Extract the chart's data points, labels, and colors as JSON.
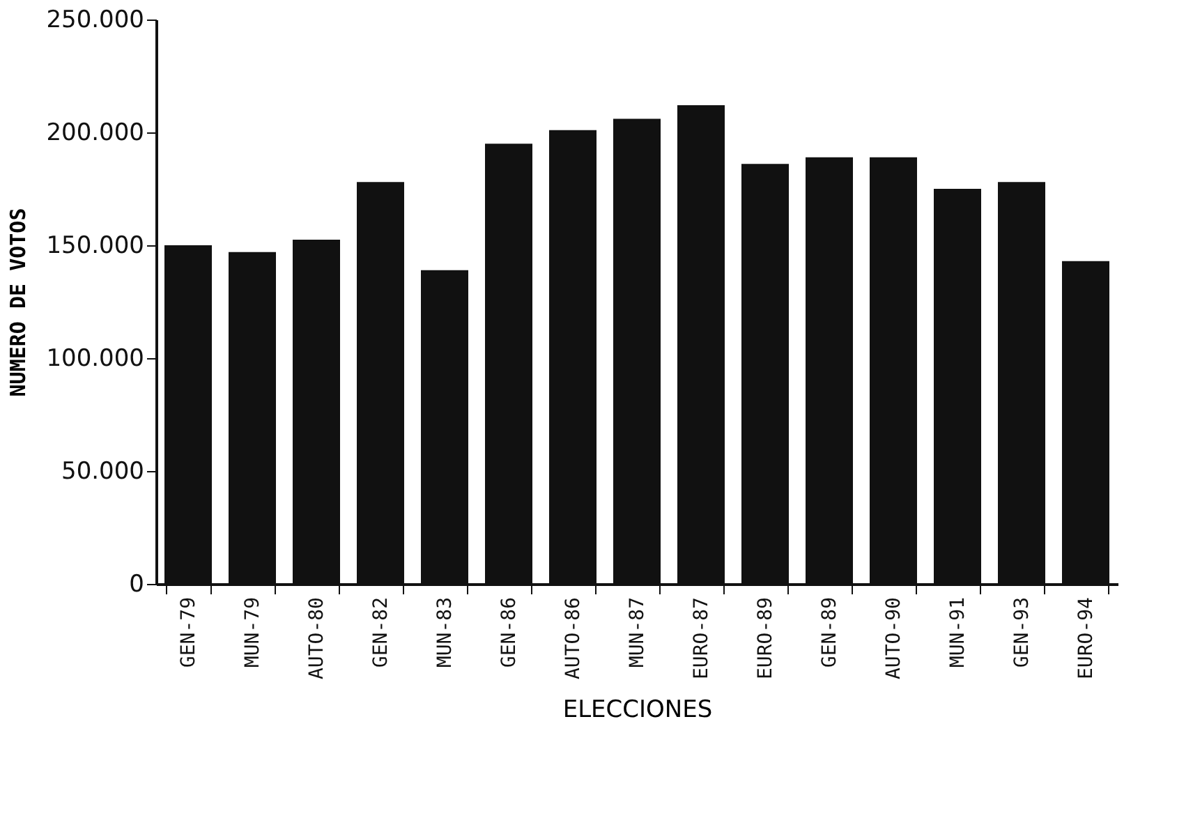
{
  "chart_data": {
    "type": "bar",
    "xlabel": "ELECCIONES",
    "ylabel": "NUMERO DE VOTOS",
    "categories": [
      "GEN-79",
      "MUN-79",
      "AUTO-80",
      "GEN-82",
      "MUN-83",
      "GEN-86",
      "AUTO-86",
      "MUN-87",
      "EURO-87",
      "EURO-89",
      "GEN-89",
      "AUTO-90",
      "MUN-91",
      "GEN-93",
      "EURO-94"
    ],
    "values": [
      150000,
      147000,
      152500,
      178000,
      139000,
      195000,
      201000,
      206000,
      212000,
      186000,
      189000,
      189000,
      175000,
      178000,
      143000
    ],
    "color": "#111111",
    "ylim": [
      0,
      250000
    ],
    "yticks": [
      {
        "value": 0,
        "label": "0"
      },
      {
        "value": 50000,
        "label": "50.000"
      },
      {
        "value": 100000,
        "label": "100.000"
      },
      {
        "value": 150000,
        "label": "150.000"
      },
      {
        "value": 200000,
        "label": "200.000"
      },
      {
        "value": 250000,
        "label": "250.000"
      }
    ],
    "grid": false
  }
}
